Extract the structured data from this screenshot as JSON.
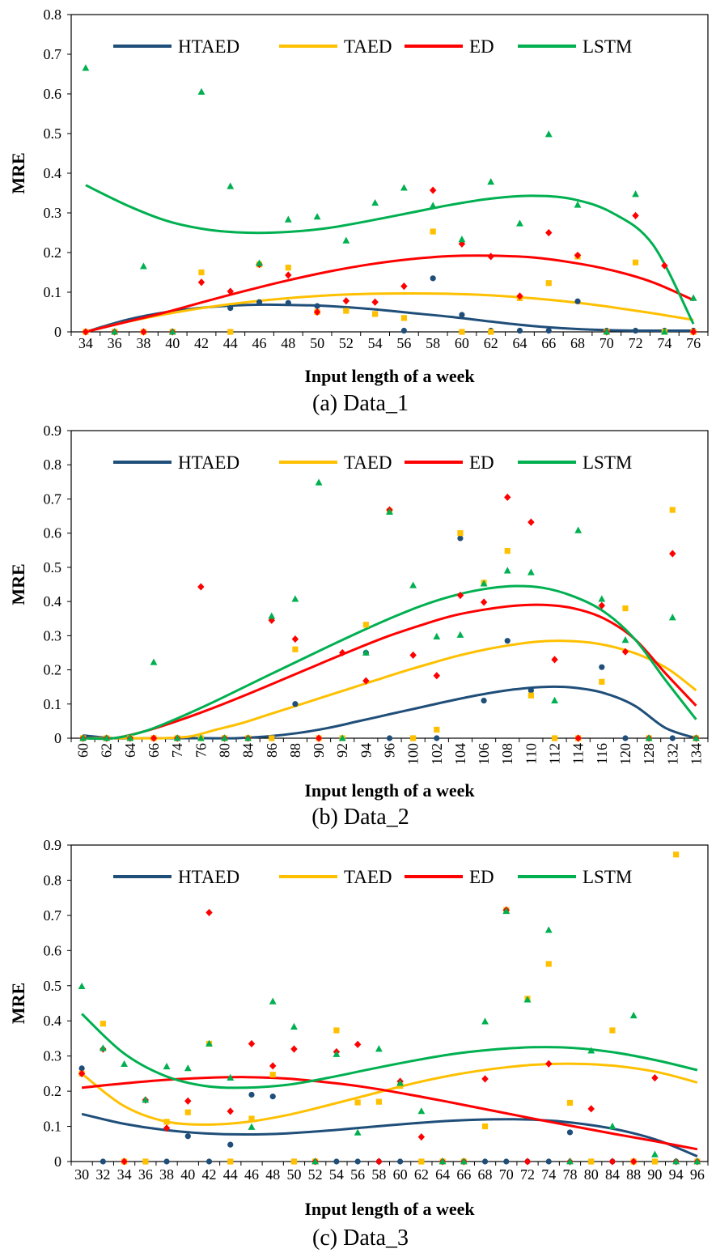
{
  "colors": {
    "HTAED": "#1f4e79",
    "TAED": "#ffc000",
    "ED": "#ff0000",
    "LSTM": "#00b050"
  },
  "chart_data": [
    {
      "type": "scatter",
      "caption": "(a) Data_1",
      "xlabel": "Input length of a week",
      "ylabel": "MRE",
      "ylim": [
        0,
        0.8
      ],
      "yticks": [
        "0",
        "0.1",
        "0.2",
        "0.3",
        "0.4",
        "0.5",
        "0.6",
        "0.7",
        "0.8"
      ],
      "categories": [
        "34",
        "36",
        "38",
        "40",
        "42",
        "44",
        "46",
        "48",
        "50",
        "52",
        "54",
        "56",
        "58",
        "60",
        "62",
        "64",
        "66",
        "68",
        "70",
        "72",
        "74",
        "76"
      ],
      "legend": "top",
      "series": [
        {
          "name": "HTAED",
          "marker": "circle",
          "values": [
            0,
            0,
            0,
            0,
            0.15,
            0.06,
            0.075,
            0.073,
            0.065,
            0.055,
            0.045,
            0.003,
            0.135,
            0.043,
            0.003,
            0.003,
            0.003,
            0.077,
            0.003,
            0.003,
            0.003,
            0.003
          ],
          "trend": [
            0,
            0.03,
            0.05,
            0.062,
            0.068,
            0.068,
            0.065,
            0.058,
            0.048,
            0.038,
            0.026,
            0.015,
            0.008,
            0.004,
            0.003,
            0.003
          ]
        },
        {
          "name": "TAED",
          "marker": "square",
          "values": [
            0,
            0,
            0,
            0,
            0.15,
            0,
            0.17,
            0.162,
            0.05,
            0.053,
            0.045,
            0.035,
            0.253,
            0,
            0,
            0.085,
            0.123,
            0.19,
            0,
            0.175,
            0,
            0
          ],
          "trend": [
            0,
            0.025,
            0.045,
            0.062,
            0.075,
            0.085,
            0.092,
            0.096,
            0.097,
            0.096,
            0.092,
            0.085,
            0.075,
            0.062,
            0.047,
            0.03
          ]
        },
        {
          "name": "ED",
          "marker": "diamond",
          "values": [
            0,
            0,
            0,
            0,
            0.125,
            0.102,
            0.17,
            0.143,
            0.05,
            0.078,
            0.075,
            0.115,
            0.357,
            0.222,
            0.19,
            0.09,
            0.25,
            0.193,
            0,
            0.293,
            0.167,
            0
          ],
          "trend": [
            0,
            0.025,
            0.05,
            0.078,
            0.105,
            0.13,
            0.152,
            0.17,
            0.183,
            0.191,
            0.192,
            0.188,
            0.175,
            0.155,
            0.125,
            0.08
          ]
        },
        {
          "name": "LSTM",
          "marker": "triangle",
          "values": [
            0.665,
            0,
            0.165,
            0,
            0.605,
            0.367,
            0.173,
            0.283,
            0.29,
            0.23,
            0.325,
            0.363,
            0.318,
            0.233,
            0.378,
            0.273,
            0.498,
            0.32,
            0,
            0.347,
            0,
            0.085
          ],
          "trend": [
            0.37,
            0.32,
            0.28,
            0.258,
            0.25,
            0.252,
            0.262,
            0.28,
            0.3,
            0.32,
            0.336,
            0.343,
            0.335,
            0.3,
            0.22,
            0.02
          ]
        }
      ]
    },
    {
      "type": "scatter",
      "caption": "(b) Data_2",
      "xlabel": "Input length of a week",
      "ylabel": "MRE",
      "ylim": [
        0,
        0.9
      ],
      "yticks": [
        "0",
        "0.1",
        "0.2",
        "0.3",
        "0.4",
        "0.5",
        "0.6",
        "0.7",
        "0.8",
        "0.9"
      ],
      "categories": [
        "60",
        "62",
        "64",
        "66",
        "74",
        "76",
        "80",
        "84",
        "86",
        "88",
        "90",
        "92",
        "94",
        "96",
        "100",
        "102",
        "104",
        "106",
        "108",
        "110",
        "112",
        "114",
        "116",
        "120",
        "128",
        "132",
        "134"
      ],
      "legend": "top",
      "series": [
        {
          "name": "HTAED",
          "marker": "circle",
          "values": [
            0,
            0,
            0,
            0,
            0,
            0,
            0,
            0,
            0,
            0.1,
            0,
            0,
            0.25,
            0,
            0,
            0,
            0.585,
            0.11,
            0.285,
            0.14,
            0,
            0,
            0.208,
            0,
            0,
            0,
            0
          ],
          "trend": [
            0.008,
            0,
            0,
            0,
            0,
            0,
            0.005,
            0.015,
            0.03,
            0.05,
            0.07,
            0.09,
            0.11,
            0.128,
            0.142,
            0.15,
            0.148,
            0.132,
            0.095,
            0.03,
            0
          ]
        },
        {
          "name": "TAED",
          "marker": "square",
          "values": [
            0,
            0,
            0,
            0,
            0,
            0,
            0,
            0,
            0,
            0.26,
            0,
            0,
            0.332,
            0.665,
            0,
            0.025,
            0.6,
            0.455,
            0.548,
            0.125,
            0,
            0,
            0.165,
            0.38,
            0,
            0.668,
            0
          ],
          "trend": [
            0,
            0,
            0,
            0,
            0.005,
            0.025,
            0.045,
            0.07,
            0.095,
            0.12,
            0.145,
            0.17,
            0.195,
            0.218,
            0.24,
            0.258,
            0.272,
            0.282,
            0.285,
            0.28,
            0.265,
            0.24,
            0.2,
            0.14
          ]
        },
        {
          "name": "ED",
          "marker": "diamond",
          "values": [
            0,
            0,
            0,
            0,
            0,
            0.443,
            0,
            0,
            0.345,
            0.29,
            0,
            0.25,
            0.168,
            0.668,
            0.243,
            0.183,
            0.418,
            0.398,
            0.705,
            0.632,
            0.23,
            0,
            0.388,
            0.253,
            0,
            0.54,
            0
          ],
          "trend": [
            0,
            0,
            0.02,
            0.048,
            0.08,
            0.115,
            0.152,
            0.19,
            0.228,
            0.265,
            0.3,
            0.33,
            0.357,
            0.375,
            0.387,
            0.39,
            0.38,
            0.35,
            0.29,
            0.19,
            0.095
          ]
        },
        {
          "name": "LSTM",
          "marker": "triangle",
          "values": [
            0,
            0,
            0,
            0.222,
            0,
            0,
            0,
            0,
            0.357,
            0.407,
            0.748,
            0,
            0.25,
            0.662,
            0.447,
            0.297,
            0.302,
            0.452,
            0.49,
            0.485,
            0.11,
            0.608,
            0.407,
            0.287,
            0,
            0.353,
            0
          ],
          "trend": [
            0,
            0,
            0.02,
            0.055,
            0.095,
            0.138,
            0.182,
            0.225,
            0.268,
            0.31,
            0.35,
            0.386,
            0.415,
            0.435,
            0.445,
            0.44,
            0.415,
            0.37,
            0.29,
            0.17,
            0.055
          ]
        }
      ]
    },
    {
      "type": "scatter",
      "caption": "(c) Data_3",
      "xlabel": "Input length of a week",
      "ylabel": "MRE",
      "ylim": [
        0,
        0.9
      ],
      "yticks": [
        "0",
        "0.1",
        "0.2",
        "0.3",
        "0.4",
        "0.5",
        "0.6",
        "0.7",
        "0.8",
        "0.9"
      ],
      "categories": [
        "30",
        "32",
        "34",
        "36",
        "38",
        "40",
        "42",
        "44",
        "46",
        "48",
        "50",
        "52",
        "54",
        "56",
        "58",
        "60",
        "62",
        "64",
        "66",
        "68",
        "70",
        "72",
        "74",
        "78",
        "80",
        "84",
        "88",
        "90",
        "94",
        "96"
      ],
      "legend": "top",
      "series": [
        {
          "name": "HTAED",
          "marker": "circle",
          "values": [
            0.265,
            0,
            0,
            0,
            0,
            0.072,
            0,
            0.048,
            0.19,
            0.185,
            0,
            0,
            0,
            0,
            0,
            0,
            0,
            0,
            0,
            0,
            0,
            0,
            0,
            0.083,
            0,
            0,
            0,
            0,
            0,
            0
          ],
          "trend": [
            0.135,
            0.108,
            0.09,
            0.08,
            0.077,
            0.08,
            0.088,
            0.098,
            0.108,
            0.116,
            0.12,
            0.119,
            0.11,
            0.092,
            0.062,
            0.015
          ]
        },
        {
          "name": "TAED",
          "marker": "square",
          "values": [
            0.25,
            0.392,
            0,
            0,
            0.113,
            0.14,
            0.335,
            0,
            0.122,
            0.247,
            0,
            0,
            0.373,
            0.168,
            0.17,
            0.215,
            0,
            0,
            0,
            0.1,
            0.715,
            0.463,
            0.562,
            0.167,
            0,
            0.373,
            0,
            0,
            0.873,
            0
          ],
          "trend": [
            0.25,
            0.16,
            0.115,
            0.105,
            0.112,
            0.132,
            0.16,
            0.19,
            0.22,
            0.245,
            0.263,
            0.275,
            0.278,
            0.272,
            0.255,
            0.225
          ]
        },
        {
          "name": "ED",
          "marker": "diamond",
          "values": [
            0.25,
            0.32,
            0,
            0.175,
            0.095,
            0.172,
            0.708,
            0.143,
            0.335,
            0.272,
            0.32,
            0,
            0.312,
            0.333,
            0,
            0.228,
            0.07,
            0,
            0,
            0.235,
            0.715,
            0,
            0.278,
            0,
            0.15,
            0,
            0,
            0.238,
            0,
            0
          ],
          "trend": [
            0.21,
            0.222,
            0.232,
            0.238,
            0.24,
            0.236,
            0.225,
            0.21,
            0.19,
            0.168,
            0.145,
            0.122,
            0.1,
            0.078,
            0.057,
            0.035
          ]
        },
        {
          "name": "LSTM",
          "marker": "triangle",
          "values": [
            0.498,
            0.322,
            0.277,
            0.175,
            0.27,
            0.265,
            0.335,
            0.238,
            0.098,
            0.455,
            0.383,
            0,
            0.305,
            0.082,
            0.32,
            0.223,
            0.143,
            0,
            0,
            0.398,
            0.712,
            0.46,
            0.658,
            0,
            0.315,
            0.1,
            0.415,
            0.02,
            0,
            0
          ],
          "trend": [
            0.42,
            0.31,
            0.245,
            0.215,
            0.21,
            0.218,
            0.238,
            0.262,
            0.285,
            0.305,
            0.318,
            0.325,
            0.323,
            0.31,
            0.288,
            0.26
          ]
        }
      ]
    }
  ]
}
